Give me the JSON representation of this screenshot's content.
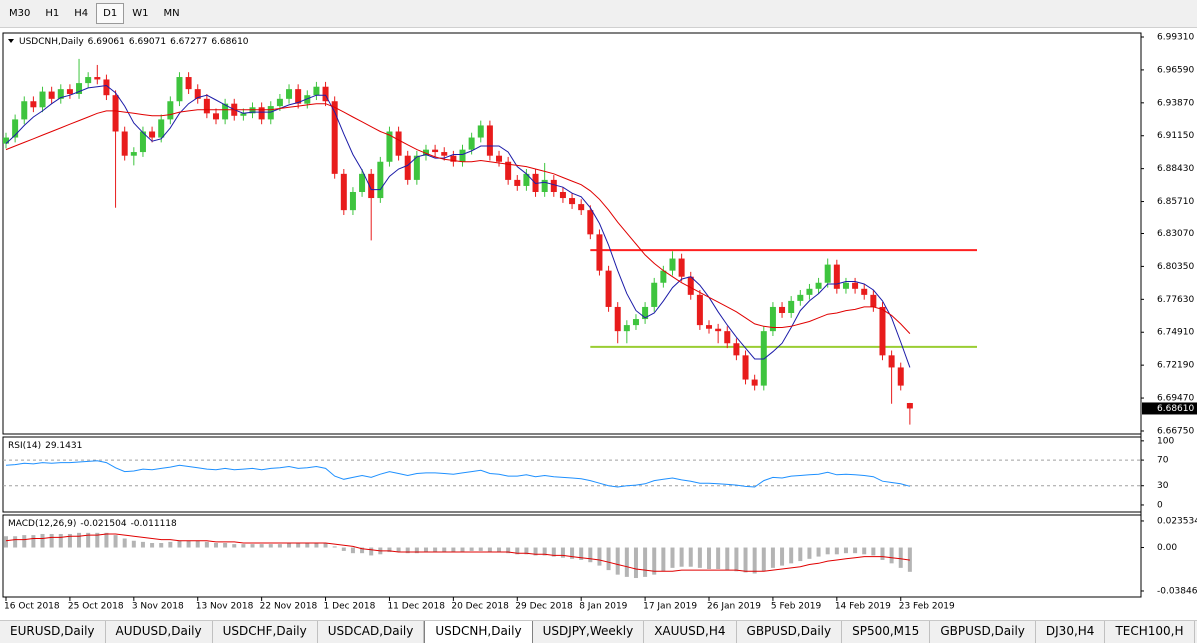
{
  "toolbar": {
    "buttons": [
      "M30",
      "H1",
      "H4",
      "D1",
      "W1",
      "MN"
    ],
    "active": 3
  },
  "tabs": {
    "items": [
      "EURUSD,Daily",
      "AUDUSD,Daily",
      "USDCHF,Daily",
      "USDCAD,Daily",
      "USDCNH,Daily",
      "USDJPY,Weekly",
      "XAUUSD,H4",
      "GBPUSD,Daily",
      "SP500,M15",
      "GBPUSD,Daily",
      "DJ30,H4",
      "TECH100,H"
    ],
    "active": 4
  },
  "chart_data": [
    {
      "type": "candlestick",
      "title": "USDCNH,Daily",
      "ohlc_labels": [
        "6.69061",
        "6.69071",
        "6.67277",
        "6.68610"
      ],
      "categories": [
        "16 Oct 2018",
        null,
        null,
        null,
        null,
        null,
        null,
        "25 Oct 2018",
        null,
        null,
        null,
        null,
        null,
        null,
        "3 Nov 2018",
        null,
        null,
        null,
        null,
        null,
        null,
        "13 Nov 2018",
        null,
        null,
        null,
        null,
        null,
        null,
        "22 Nov 2018",
        null,
        null,
        null,
        null,
        null,
        null,
        "1 Dec 2018",
        null,
        null,
        null,
        null,
        null,
        null,
        "11 Dec 2018",
        null,
        null,
        null,
        null,
        null,
        null,
        "20 Dec 2018",
        null,
        null,
        null,
        null,
        null,
        null,
        "29 Dec 2018",
        null,
        null,
        null,
        null,
        null,
        null,
        "8 Jan 2019",
        null,
        null,
        null,
        null,
        null,
        null,
        "17 Jan 2019",
        null,
        null,
        null,
        null,
        null,
        null,
        "26 Jan 2019",
        null,
        null,
        null,
        null,
        null,
        null,
        "5 Feb 2019",
        null,
        null,
        null,
        null,
        null,
        null,
        "14 Feb 2019",
        null,
        null,
        null,
        null,
        null,
        null,
        "23 Feb 2019",
        null
      ],
      "open": [
        6.905,
        6.91,
        6.925,
        6.94,
        6.935,
        6.948,
        6.942,
        6.95,
        6.946,
        6.955,
        6.96,
        6.958,
        6.945,
        6.915,
        6.895,
        6.898,
        6.915,
        6.91,
        6.925,
        6.94,
        6.96,
        6.95,
        6.942,
        6.93,
        6.925,
        6.938,
        6.928,
        6.93,
        6.935,
        6.925,
        6.936,
        6.942,
        6.95,
        6.938,
        6.945,
        6.952,
        6.94,
        6.88,
        6.85,
        6.865,
        6.88,
        6.86,
        6.89,
        6.915,
        6.895,
        6.875,
        6.895,
        6.9,
        6.898,
        6.895,
        6.89,
        6.9,
        6.91,
        6.92,
        6.895,
        6.89,
        6.875,
        6.87,
        6.88,
        6.865,
        6.875,
        6.865,
        6.86,
        6.855,
        6.85,
        6.83,
        6.8,
        6.77,
        6.75,
        6.755,
        6.76,
        6.77,
        6.79,
        6.8,
        6.81,
        6.795,
        6.78,
        6.755,
        6.752,
        6.75,
        6.74,
        6.73,
        6.71,
        6.705,
        6.75,
        6.77,
        6.765,
        6.775,
        6.78,
        6.785,
        6.79,
        6.805,
        6.785,
        6.79,
        6.785,
        6.78,
        6.77,
        6.73,
        6.72,
        6.69061
      ],
      "high": [
        6.914,
        6.929,
        6.944,
        6.944,
        6.952,
        6.952,
        6.954,
        6.954,
        6.975,
        6.964,
        6.97,
        6.962,
        6.949,
        6.919,
        6.902,
        6.919,
        6.919,
        6.929,
        6.944,
        6.964,
        6.964,
        6.954,
        6.946,
        6.934,
        6.942,
        6.942,
        6.934,
        6.939,
        6.939,
        6.94,
        6.946,
        6.954,
        6.954,
        6.949,
        6.956,
        6.956,
        6.944,
        6.884,
        6.869,
        6.884,
        6.884,
        6.894,
        6.919,
        6.919,
        6.899,
        6.899,
        6.904,
        6.904,
        6.902,
        6.899,
        6.904,
        6.914,
        6.924,
        6.924,
        6.899,
        6.894,
        6.879,
        6.884,
        6.884,
        6.889,
        6.879,
        6.869,
        6.864,
        6.859,
        6.854,
        6.834,
        6.804,
        6.774,
        6.759,
        6.764,
        6.774,
        6.794,
        6.804,
        6.816,
        6.814,
        6.799,
        6.784,
        6.759,
        6.756,
        6.754,
        6.744,
        6.734,
        6.714,
        6.754,
        6.774,
        6.774,
        6.779,
        6.784,
        6.789,
        6.794,
        6.81,
        6.809,
        6.794,
        6.794,
        6.789,
        6.784,
        6.774,
        6.734,
        6.724,
        6.69071
      ],
      "low": [
        6.901,
        6.906,
        6.921,
        6.931,
        6.931,
        6.938,
        6.938,
        6.942,
        6.942,
        6.951,
        6.954,
        6.941,
        6.852,
        6.891,
        6.887,
        6.894,
        6.906,
        6.906,
        6.921,
        6.936,
        6.946,
        6.938,
        6.926,
        6.921,
        6.921,
        6.924,
        6.924,
        6.926,
        6.921,
        6.921,
        6.932,
        6.938,
        6.934,
        6.934,
        6.941,
        6.936,
        6.876,
        6.846,
        6.846,
        6.861,
        6.825,
        6.856,
        6.886,
        6.891,
        6.871,
        6.871,
        6.891,
        6.894,
        6.891,
        6.886,
        6.886,
        6.896,
        6.906,
        6.891,
        6.886,
        6.871,
        6.866,
        6.866,
        6.861,
        6.861,
        6.861,
        6.856,
        6.851,
        6.846,
        6.826,
        6.796,
        6.766,
        6.74,
        6.74,
        6.751,
        6.756,
        6.766,
        6.786,
        6.796,
        6.791,
        6.776,
        6.751,
        6.748,
        6.74,
        6.736,
        6.726,
        6.706,
        6.701,
        6.701,
        6.746,
        6.761,
        6.761,
        6.771,
        6.776,
        6.781,
        6.786,
        6.781,
        6.781,
        6.781,
        6.776,
        6.766,
        6.726,
        6.69,
        6.701,
        6.67277
      ],
      "close": [
        6.91,
        6.925,
        6.94,
        6.935,
        6.948,
        6.942,
        6.95,
        6.946,
        6.955,
        6.96,
        6.958,
        6.945,
        6.915,
        6.895,
        6.898,
        6.915,
        6.91,
        6.925,
        6.94,
        6.96,
        6.95,
        6.942,
        6.93,
        6.925,
        6.938,
        6.928,
        6.93,
        6.935,
        6.925,
        6.936,
        6.942,
        6.95,
        6.938,
        6.945,
        6.952,
        6.94,
        6.88,
        6.85,
        6.865,
        6.88,
        6.86,
        6.89,
        6.915,
        6.895,
        6.875,
        6.895,
        6.9,
        6.898,
        6.895,
        6.89,
        6.9,
        6.91,
        6.92,
        6.895,
        6.89,
        6.875,
        6.87,
        6.88,
        6.865,
        6.875,
        6.865,
        6.86,
        6.855,
        6.85,
        6.83,
        6.8,
        6.77,
        6.75,
        6.755,
        6.76,
        6.77,
        6.79,
        6.8,
        6.81,
        6.795,
        6.78,
        6.755,
        6.752,
        6.75,
        6.74,
        6.73,
        6.71,
        6.705,
        6.75,
        6.77,
        6.765,
        6.775,
        6.78,
        6.785,
        6.79,
        6.805,
        6.785,
        6.79,
        6.785,
        6.78,
        6.77,
        6.73,
        6.72,
        6.705,
        6.6861
      ],
      "up_color": "#3ec43e",
      "down_color": "#e81c1c",
      "overlays": [
        {
          "color": "#1c1ca8",
          "values": [
            6.905,
            6.912,
            6.92,
            6.927,
            6.932,
            6.938,
            6.943,
            6.945,
            6.948,
            6.951,
            6.952,
            6.953,
            6.947,
            6.936,
            6.922,
            6.914,
            6.907,
            6.909,
            6.918,
            6.93,
            6.938,
            6.943,
            6.945,
            6.941,
            6.937,
            6.933,
            6.93,
            6.931,
            6.931,
            6.931,
            6.934,
            6.937,
            6.939,
            6.942,
            6.945,
            6.945,
            6.931,
            6.913,
            6.896,
            6.883,
            6.867,
            6.867,
            6.878,
            6.884,
            6.887,
            6.894,
            6.896,
            6.893,
            6.893,
            6.896,
            6.896,
            6.899,
            6.903,
            6.903,
            6.903,
            6.898,
            6.886,
            6.88,
            6.872,
            6.873,
            6.871,
            6.869,
            6.864,
            6.861,
            6.852,
            6.839,
            6.821,
            6.8,
            6.781,
            6.767,
            6.761,
            6.765,
            6.775,
            6.786,
            6.793,
            6.795,
            6.788,
            6.778,
            6.766,
            6.755,
            6.745,
            6.736,
            6.727,
            6.727,
            6.733,
            6.74,
            6.753,
            6.767,
            6.775,
            6.781,
            6.789,
            6.789,
            6.791,
            6.791,
            6.789,
            6.784,
            6.775,
            6.761,
            6.741,
            6.72
          ]
        },
        {
          "color": "#e00000",
          "values": [
            6.9,
            6.903,
            6.906,
            6.909,
            6.912,
            6.915,
            6.918,
            6.921,
            6.924,
            6.927,
            6.93,
            6.932,
            6.932,
            6.931,
            6.93,
            6.929,
            6.928,
            6.928,
            6.929,
            6.931,
            6.932,
            6.933,
            6.933,
            6.933,
            6.933,
            6.933,
            6.933,
            6.933,
            6.933,
            6.933,
            6.934,
            6.935,
            6.936,
            6.937,
            6.938,
            6.938,
            6.935,
            6.931,
            6.927,
            6.923,
            6.919,
            6.915,
            6.912,
            6.908,
            6.904,
            6.9,
            6.897,
            6.894,
            6.892,
            6.891,
            6.89,
            6.89,
            6.891,
            6.89,
            6.889,
            6.888,
            6.887,
            6.886,
            6.884,
            6.882,
            6.88,
            6.877,
            6.874,
            6.871,
            6.866,
            6.859,
            6.85,
            6.84,
            6.831,
            6.822,
            6.813,
            6.806,
            6.8,
            6.795,
            6.79,
            6.786,
            6.782,
            6.778,
            6.774,
            6.77,
            6.766,
            6.761,
            6.756,
            6.754,
            6.753,
            6.753,
            6.754,
            6.756,
            6.758,
            6.761,
            6.764,
            6.765,
            6.767,
            6.768,
            6.77,
            6.77,
            6.768,
            6.763,
            6.756,
            6.748
          ]
        }
      ],
      "hlines": [
        {
          "value": 6.817,
          "color": "#ff2020"
        },
        {
          "value": 6.737,
          "color": "#9acd32"
        }
      ],
      "ylim": [
        6.665,
        6.9964
      ],
      "yticks": [
        {
          "value": 6.9931,
          "label": "6.99310"
        },
        {
          "value": 6.9659,
          "label": "6.96590"
        },
        {
          "value": 6.9387,
          "label": "6.93870"
        },
        {
          "value": 6.9115,
          "label": "6.91150"
        },
        {
          "value": 6.8843,
          "label": "6.88430"
        },
        {
          "value": 6.8571,
          "label": "6.85710"
        },
        {
          "value": 6.8307,
          "label": "6.83070"
        },
        {
          "value": 6.8035,
          "label": "6.80350"
        },
        {
          "value": 6.7763,
          "label": "6.77630"
        },
        {
          "value": 6.7491,
          "label": "6.74910"
        },
        {
          "value": 6.7219,
          "label": "6.72190"
        },
        {
          "value": 6.6947,
          "label": "6.69470"
        },
        {
          "value": 6.6675,
          "label": "6.66750"
        }
      ]
    },
    {
      "type": "line",
      "title": "RSI(14)",
      "color": "#1e90ff",
      "values": [
        62,
        63,
        65,
        64,
        66,
        65,
        66,
        66,
        67,
        68,
        69,
        66,
        58,
        52,
        53,
        56,
        55,
        57,
        59,
        62,
        60,
        58,
        56,
        55,
        57,
        55,
        56,
        57,
        55,
        57,
        58,
        60,
        57,
        58,
        60,
        57,
        45,
        40,
        43,
        46,
        43,
        48,
        52,
        49,
        46,
        49,
        50,
        50,
        49,
        48,
        50,
        52,
        54,
        49,
        48,
        45,
        45,
        47,
        44,
        46,
        44,
        43,
        42,
        41,
        38,
        34,
        30,
        28,
        30,
        31,
        33,
        38,
        40,
        42,
        39,
        37,
        34,
        34,
        33,
        32,
        31,
        29,
        28,
        38,
        43,
        42,
        45,
        46,
        47,
        48,
        51,
        47,
        48,
        47,
        46,
        44,
        37,
        35,
        33,
        29.1431
      ],
      "levels": [
        70,
        30
      ],
      "ylim": [
        -11,
        106
      ],
      "yticks": [
        100,
        70,
        30,
        0
      ]
    },
    {
      "type": "macd",
      "title": "MACD(12,26,9)",
      "series": [
        {
          "style": "bar",
          "color": "#b4b4b4",
          "values": [
            0.01,
            0.01,
            0.011,
            0.011,
            0.012,
            0.012,
            0.012,
            0.012,
            0.013,
            0.013,
            0.013,
            0.013,
            0.011,
            0.008,
            0.006,
            0.005,
            0.004,
            0.004,
            0.005,
            0.006,
            0.006,
            0.006,
            0.005,
            0.004,
            0.004,
            0.003,
            0.003,
            0.003,
            0.003,
            0.003,
            0.003,
            0.004,
            0.004,
            0.004,
            0.004,
            0.004,
            0.001,
            -0.003,
            -0.005,
            -0.005,
            -0.007,
            -0.006,
            -0.004,
            -0.004,
            -0.005,
            -0.005,
            -0.004,
            -0.004,
            -0.004,
            -0.004,
            -0.004,
            -0.003,
            -0.003,
            -0.004,
            -0.004,
            -0.005,
            -0.006,
            -0.006,
            -0.007,
            -0.007,
            -0.008,
            -0.009,
            -0.01,
            -0.011,
            -0.013,
            -0.016,
            -0.02,
            -0.024,
            -0.026,
            -0.027,
            -0.026,
            -0.024,
            -0.021,
            -0.018,
            -0.017,
            -0.017,
            -0.018,
            -0.019,
            -0.019,
            -0.02,
            -0.021,
            -0.022,
            -0.023,
            -0.021,
            -0.018,
            -0.016,
            -0.014,
            -0.012,
            -0.01,
            -0.008,
            -0.006,
            -0.006,
            -0.005,
            -0.005,
            -0.006,
            -0.007,
            -0.011,
            -0.014,
            -0.018,
            -0.021504
          ]
        },
        {
          "style": "line",
          "color": "#e00000",
          "values": [
            0.006,
            0.007,
            0.007,
            0.008,
            0.008,
            0.009,
            0.009,
            0.01,
            0.01,
            0.011,
            0.011,
            0.012,
            0.012,
            0.011,
            0.01,
            0.009,
            0.008,
            0.007,
            0.007,
            0.006,
            0.006,
            0.006,
            0.006,
            0.005,
            0.005,
            0.005,
            0.004,
            0.004,
            0.004,
            0.004,
            0.004,
            0.004,
            0.004,
            0.004,
            0.004,
            0.004,
            0.003,
            0.002,
            0.001,
            -0.001,
            -0.002,
            -0.003,
            -0.003,
            -0.004,
            -0.004,
            -0.004,
            -0.004,
            -0.004,
            -0.004,
            -0.004,
            -0.004,
            -0.004,
            -0.004,
            -0.004,
            -0.004,
            -0.004,
            -0.005,
            -0.005,
            -0.006,
            -0.006,
            -0.007,
            -0.007,
            -0.008,
            -0.009,
            -0.01,
            -0.011,
            -0.013,
            -0.015,
            -0.017,
            -0.019,
            -0.02,
            -0.021,
            -0.021,
            -0.021,
            -0.02,
            -0.02,
            -0.02,
            -0.02,
            -0.02,
            -0.02,
            -0.02,
            -0.021,
            -0.021,
            -0.021,
            -0.02,
            -0.019,
            -0.018,
            -0.017,
            -0.015,
            -0.014,
            -0.012,
            -0.011,
            -0.01,
            -0.009,
            -0.008,
            -0.008,
            -0.008,
            -0.009,
            -0.01,
            -0.011118
          ]
        }
      ],
      "ylim": [
        -0.0438,
        0.0288
      ],
      "yticks": [
        0.023534,
        {
          "value": 0,
          "label": "0.00"
        },
        -0.038466
      ]
    }
  ]
}
